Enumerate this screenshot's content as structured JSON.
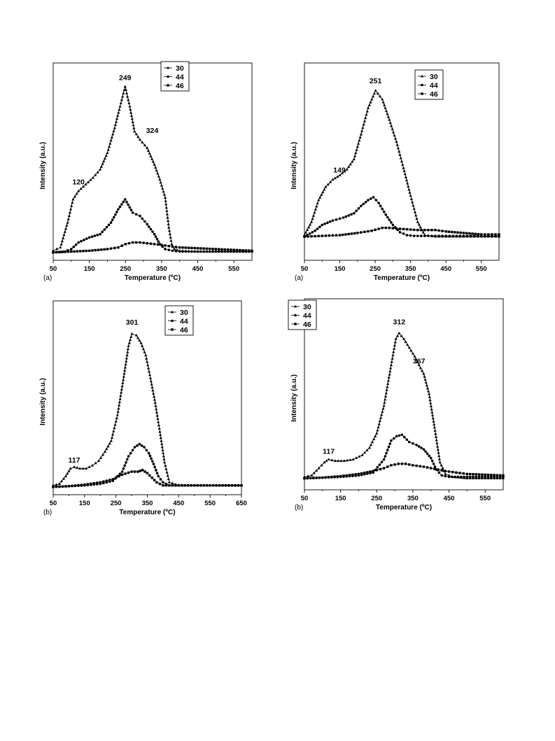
{
  "chart_data": [
    {
      "type": "line",
      "panel_label": "(a)",
      "xlabel": "Temperature (ºC)",
      "ylabel": "Intensity (a.u.)",
      "xlim": [
        50,
        600
      ],
      "ylim": [
        0,
        100
      ],
      "xticks": [
        50,
        150,
        250,
        350,
        450,
        550
      ],
      "legend": {
        "position": "top-right",
        "entries": [
          "30",
          "44",
          "46"
        ]
      },
      "annotations": [
        {
          "text": "249",
          "x": 249,
          "y": 104
        },
        {
          "text": "324",
          "x": 324,
          "y": 72
        },
        {
          "text": "120",
          "x": 120,
          "y": 41
        }
      ],
      "series": [
        {
          "name": "30",
          "marker": "triangle",
          "x": [
            50,
            70,
            90,
            105,
            120,
            140,
            160,
            180,
            200,
            220,
            235,
            249,
            262,
            275,
            290,
            310,
            330,
            345,
            360,
            370,
            378,
            385,
            400,
            450,
            500,
            550,
            600
          ],
          "y": [
            1,
            3,
            18,
            32,
            37,
            41,
            45,
            50,
            60,
            75,
            88,
            100,
            88,
            73,
            68,
            63,
            53,
            44,
            33,
            15,
            5,
            2,
            1,
            0.5,
            0.5,
            0.5,
            0.5
          ]
        },
        {
          "name": "44",
          "marker": "circle",
          "x": [
            50,
            80,
            100,
            120,
            150,
            180,
            210,
            230,
            249,
            270,
            290,
            310,
            330,
            345,
            360,
            380,
            400,
            450,
            500,
            550,
            600
          ],
          "y": [
            0,
            0.5,
            2,
            6,
            9,
            11,
            18,
            26,
            32,
            24,
            22,
            17,
            11,
            5,
            2,
            1,
            0.5,
            0.5,
            0.5,
            0.5,
            0.5
          ]
        },
        {
          "name": "46",
          "marker": "square",
          "x": [
            50,
            100,
            150,
            200,
            230,
            250,
            270,
            290,
            310,
            330,
            350,
            380,
            400,
            450,
            500,
            550,
            600
          ],
          "y": [
            0,
            0.5,
            1,
            2,
            3,
            5,
            6,
            6,
            5.5,
            5,
            4.5,
            3.5,
            3,
            2.5,
            2,
            1.5,
            1
          ]
        }
      ]
    },
    {
      "type": "line",
      "panel_label": "(a)",
      "xlabel": "Temperature (ºC)",
      "ylabel": "Intensity (a.u.)",
      "xlim": [
        50,
        600
      ],
      "ylim": [
        0,
        100
      ],
      "xticks": [
        50,
        150,
        250,
        350,
        450,
        550
      ],
      "legend": {
        "position": "top-right",
        "entries": [
          "30",
          "44",
          "46"
        ]
      },
      "annotations": [
        {
          "text": "251",
          "x": 251,
          "y": 105
        },
        {
          "text": "149",
          "x": 149,
          "y": 44
        }
      ],
      "series": [
        {
          "name": "30",
          "marker": "triangle",
          "x": [
            50,
            70,
            90,
            110,
            130,
            150,
            170,
            190,
            210,
            230,
            251,
            270,
            290,
            310,
            330,
            350,
            370,
            390,
            420,
            450,
            500,
            550,
            600
          ],
          "y": [
            1,
            10,
            25,
            34,
            39,
            42,
            46,
            53,
            70,
            88,
            100,
            94,
            80,
            65,
            47,
            28,
            10,
            1,
            0,
            0,
            0,
            0,
            0
          ]
        },
        {
          "name": "44",
          "marker": "circle",
          "x": [
            50,
            80,
            100,
            130,
            160,
            190,
            210,
            230,
            245,
            260,
            280,
            300,
            320,
            340,
            360,
            400,
            450,
            500,
            550,
            600
          ],
          "y": [
            0,
            4,
            8,
            11,
            13,
            16,
            21,
            25,
            27,
            23,
            15,
            8,
            3,
            1,
            0.5,
            0.5,
            0.5,
            0.5,
            0.5,
            0.5
          ]
        },
        {
          "name": "46",
          "marker": "square",
          "x": [
            50,
            100,
            150,
            200,
            240,
            270,
            290,
            310,
            340,
            370,
            400,
            420,
            450,
            500,
            550,
            600
          ],
          "y": [
            0,
            0.5,
            1,
            2.5,
            4,
            6,
            6,
            5.5,
            5,
            4.5,
            4.5,
            4.5,
            3.5,
            2.5,
            1.5,
            1.5
          ]
        }
      ]
    },
    {
      "type": "line",
      "panel_label": "(b)",
      "xlabel": "Temperature (ºC)",
      "ylabel": "Intensity (a.u.)",
      "xlim": [
        50,
        650
      ],
      "ylim": [
        0,
        100
      ],
      "xticks": [
        50,
        150,
        250,
        350,
        450,
        550,
        650
      ],
      "legend": {
        "position": "top-right",
        "entries": [
          "30",
          "44",
          "46"
        ]
      },
      "annotations": [
        {
          "text": "301",
          "x": 301,
          "y": 106
        },
        {
          "text": "117",
          "x": 117,
          "y": 16
        }
      ],
      "series": [
        {
          "name": "30",
          "marker": "triangle",
          "x": [
            50,
            70,
            90,
            105,
            117,
            135,
            155,
            175,
            195,
            215,
            235,
            255,
            275,
            290,
            301,
            315,
            330,
            345,
            360,
            375,
            390,
            405,
            420,
            450,
            500,
            550,
            600,
            650
          ],
          "y": [
            1,
            2,
            7,
            12,
            13,
            12,
            12,
            14,
            17,
            23,
            30,
            47,
            72,
            92,
            100,
            99,
            94,
            86,
            71,
            55,
            36,
            16,
            3,
            1,
            1,
            1,
            1,
            1
          ]
        },
        {
          "name": "44",
          "marker": "circle",
          "x": [
            50,
            100,
            150,
            200,
            240,
            270,
            290,
            310,
            325,
            340,
            355,
            370,
            385,
            400,
            420,
            450,
            500,
            550,
            600,
            650
          ],
          "y": [
            0,
            0.5,
            1,
            2,
            4,
            10,
            20,
            26,
            28,
            26,
            22,
            15,
            7,
            3,
            1,
            1,
            1,
            1,
            1,
            1
          ]
        },
        {
          "name": "46",
          "marker": "square",
          "x": [
            50,
            100,
            150,
            200,
            240,
            270,
            300,
            320,
            335,
            350,
            365,
            380,
            400,
            450,
            500,
            550,
            600,
            650
          ],
          "y": [
            0,
            0.5,
            1.5,
            3,
            5,
            8,
            10,
            10,
            11,
            9,
            6,
            3,
            1,
            1,
            1,
            1,
            1,
            1
          ]
        }
      ]
    },
    {
      "type": "line",
      "panel_label": "(b)",
      "xlabel": "Temperature (ºC)",
      "ylabel": "Intensity (a.u.)",
      "xlim": [
        50,
        600
      ],
      "ylim": [
        0,
        100
      ],
      "xticks": [
        50,
        150,
        250,
        350,
        450,
        550
      ],
      "legend": {
        "position": "top-left",
        "entries": [
          "30",
          "44",
          "46"
        ]
      },
      "annotations": [
        {
          "text": "312",
          "x": 312,
          "y": 106
        },
        {
          "text": "367",
          "x": 367,
          "y": 79
        },
        {
          "text": "117",
          "x": 117,
          "y": 17
        }
      ],
      "series": [
        {
          "name": "30",
          "marker": "triangle",
          "x": [
            50,
            70,
            90,
            105,
            117,
            135,
            160,
            185,
            210,
            230,
            250,
            270,
            290,
            303,
            312,
            325,
            340,
            355,
            367,
            380,
            395,
            410,
            425,
            440,
            460,
            500,
            550,
            600
          ],
          "y": [
            1,
            2,
            7,
            11,
            13,
            12,
            12,
            13,
            16,
            21,
            31,
            50,
            78,
            96,
            100,
            96,
            90,
            84,
            78,
            72,
            58,
            35,
            11,
            3,
            1,
            0,
            0,
            0
          ]
        },
        {
          "name": "44",
          "marker": "circle",
          "x": [
            50,
            100,
            150,
            200,
            240,
            270,
            290,
            305,
            320,
            340,
            360,
            380,
            400,
            415,
            430,
            450,
            500,
            550,
            600
          ],
          "y": [
            0,
            0.5,
            1,
            2,
            4,
            13,
            26,
            29,
            30,
            25,
            23,
            20,
            14,
            6,
            2,
            1,
            1,
            1,
            1
          ]
        },
        {
          "name": "46",
          "marker": "square",
          "x": [
            50,
            100,
            150,
            200,
            240,
            270,
            290,
            310,
            330,
            350,
            380,
            410,
            440,
            470,
            500,
            550,
            600
          ],
          "y": [
            0,
            0.5,
            1.5,
            3,
            5,
            7,
            9,
            10,
            10,
            9,
            8,
            6.5,
            5,
            4,
            3,
            2.5,
            2
          ]
        }
      ]
    }
  ]
}
